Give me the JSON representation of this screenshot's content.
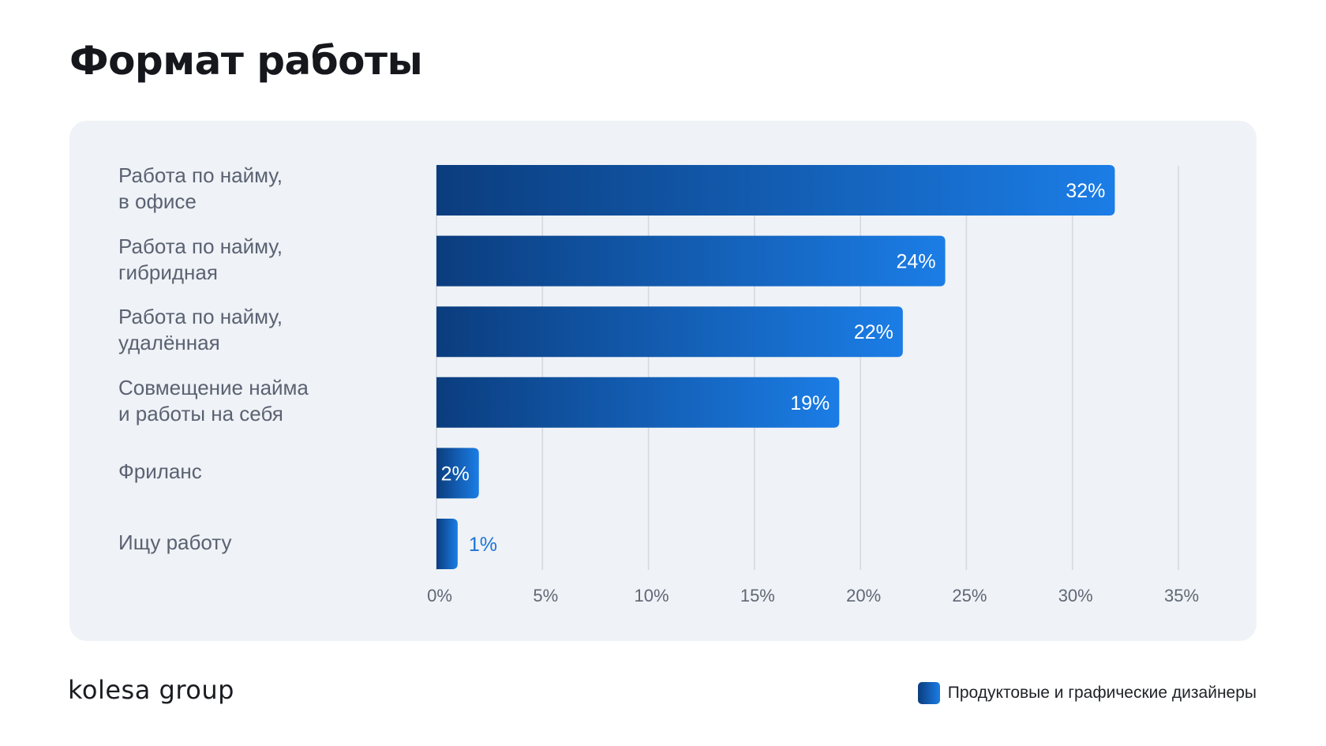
{
  "title": "Формат работы",
  "logo": "kolesa group",
  "legend": {
    "label": "Продуктовые и графические дизайнеры",
    "colors": [
      "#0b3d7e",
      "#1b7de6"
    ]
  },
  "colors": {
    "bar_dark": "#0b3d7e",
    "bar_light": "#1b7de6",
    "grid": "#d3d8df",
    "panel_bg": "#eff2f6",
    "label_text": "#5a6272",
    "outside_label": "#1b74d6"
  },
  "chart_data": {
    "type": "bar",
    "orientation": "horizontal",
    "title": "Формат работы",
    "xlabel": "",
    "ylabel": "",
    "xlim": [
      0,
      35
    ],
    "grid": true,
    "legend_position": "bottom-right",
    "categories": [
      "Работа по найму,\nв офисе",
      "Работа по найму,\nгибридная",
      "Работа по найму,\nудалённая",
      "Совмещение найма\nи работы на себя",
      "Фриланс",
      "Ищу работу"
    ],
    "series": [
      {
        "name": "Продуктовые и графические дизайнеры",
        "values": [
          32,
          24,
          22,
          19,
          2,
          1
        ]
      }
    ],
    "data_labels": [
      "32%",
      "24%",
      "22%",
      "19%",
      "2%",
      "1%"
    ],
    "ticks": [
      0,
      5,
      10,
      15,
      20,
      25,
      30,
      35
    ],
    "tick_labels": [
      "0%",
      "5%",
      "10%",
      "15%",
      "20%",
      "25%",
      "30%",
      "35%"
    ]
  }
}
